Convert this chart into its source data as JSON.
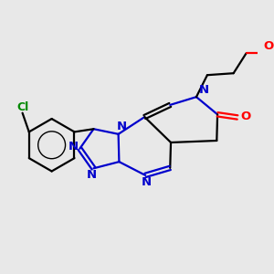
{
  "bg_color": "#e8e8e8",
  "bond_color": "#000000",
  "n_color": "#0000cc",
  "o_color": "#ff0000",
  "cl_color": "#008800",
  "bond_width": 1.6,
  "figsize": [
    3.0,
    3.0
  ],
  "dpi": 100,
  "xlim": [
    -3.8,
    3.2
  ],
  "ylim": [
    -2.5,
    2.5
  ]
}
